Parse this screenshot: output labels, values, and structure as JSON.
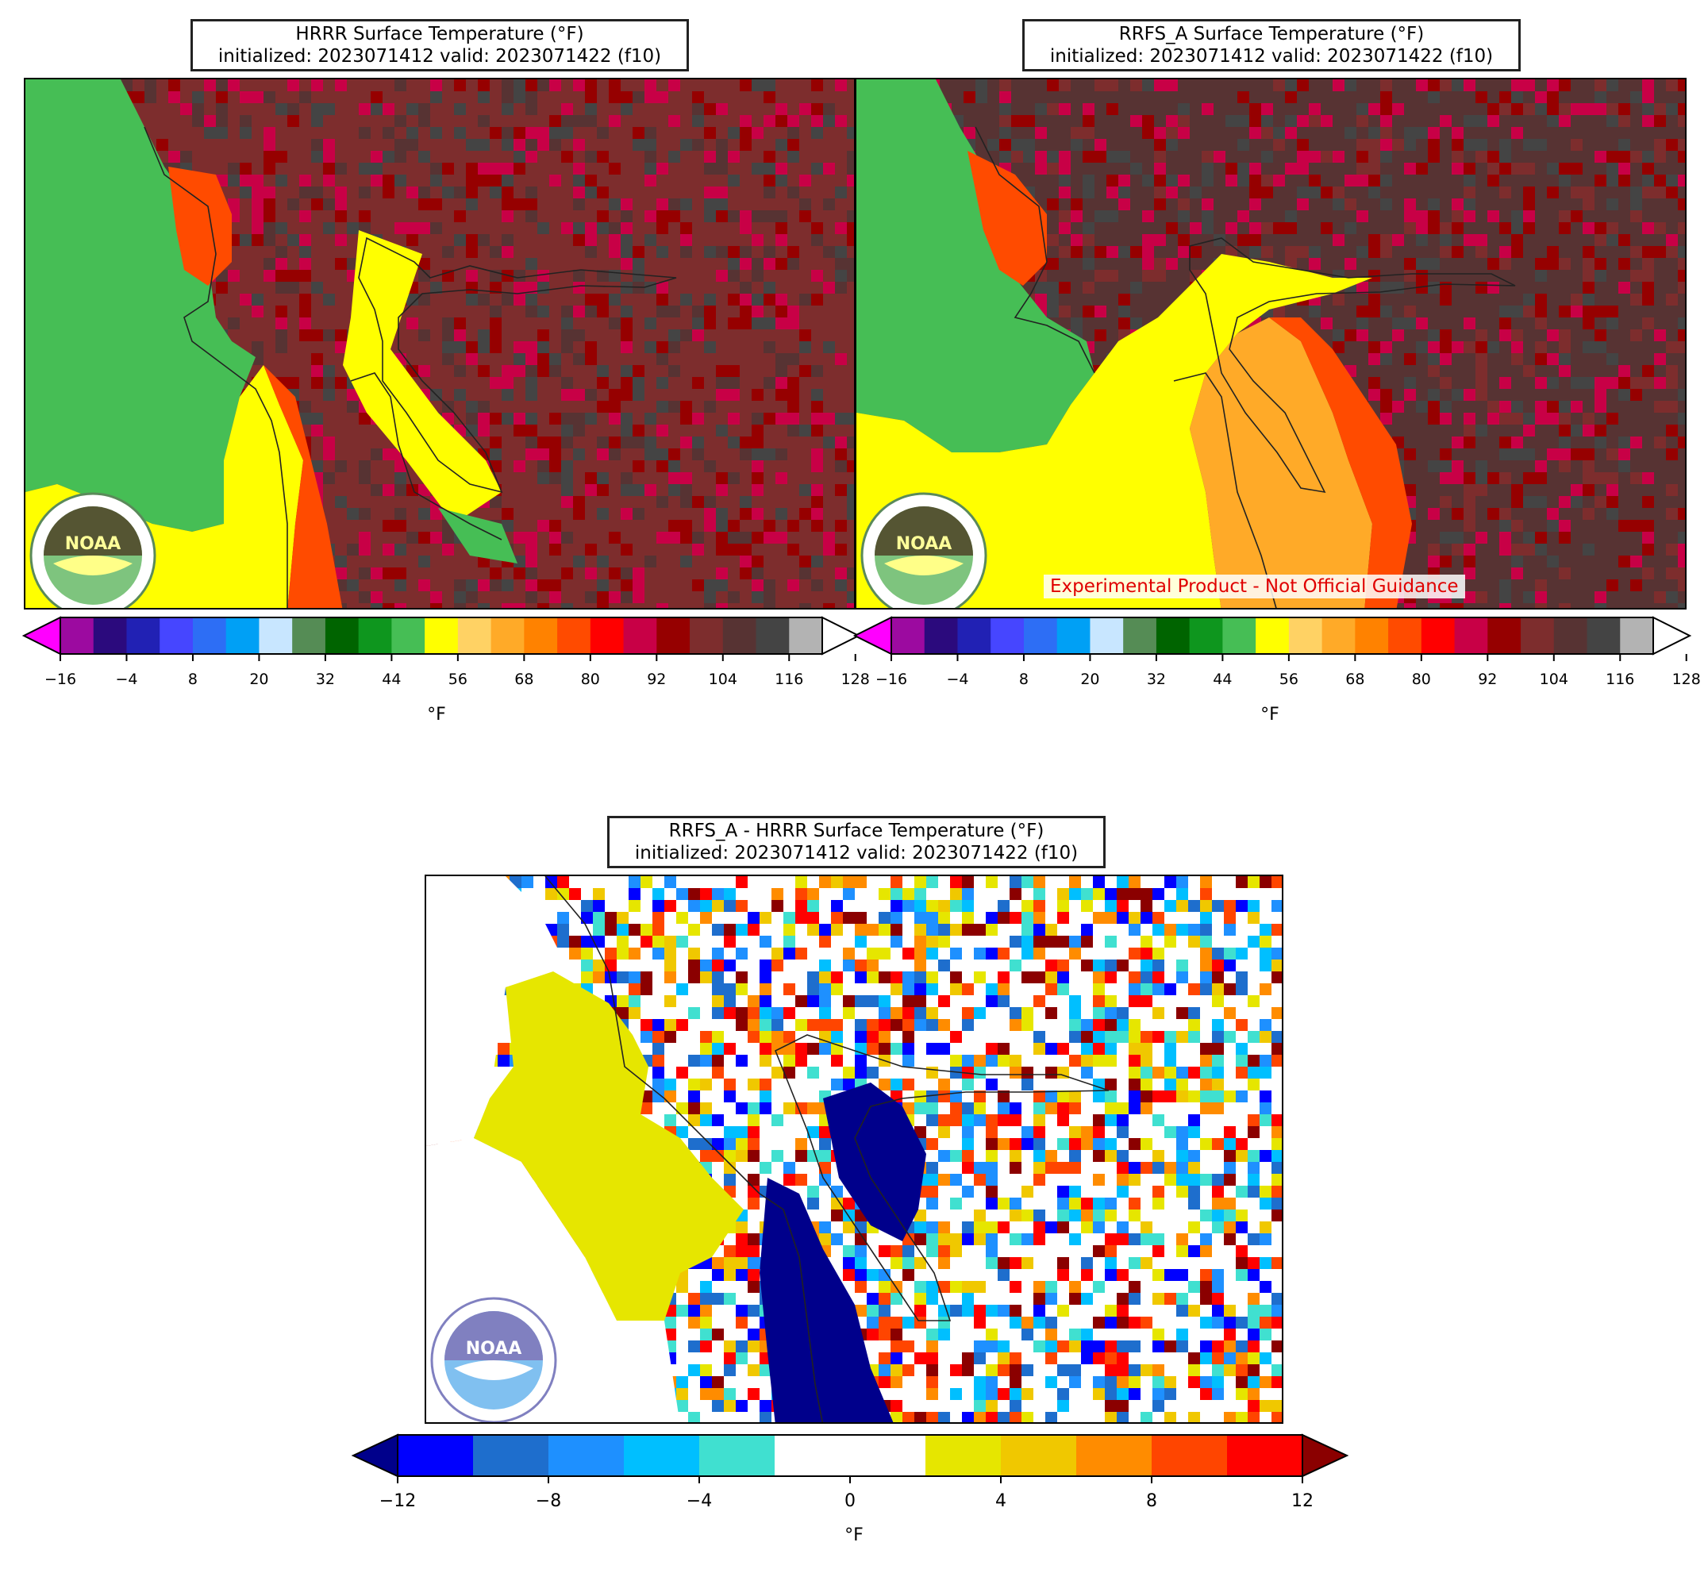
{
  "panels": [
    {
      "id": "hrrr",
      "title_line1": "HRRR Surface Temperature (°F)",
      "title_line2": "initialized: 2023071412 valid: 2023071422 (f10)"
    },
    {
      "id": "rrfs",
      "title_line1": "RRFS_A Surface Temperature (°F)",
      "title_line2": "initialized: 2023071412 valid: 2023071422 (f10)",
      "watermark": "Experimental Product - Not Official Guidance"
    },
    {
      "id": "diff",
      "title_line1": "RRFS_A - HRRR Surface Temperature (°F)",
      "title_line2": "initialized: 2023071412 valid: 2023071422 (f10)"
    }
  ],
  "logo": {
    "name": "noaa-logo",
    "text": "NOAA"
  },
  "temperature_colorbar": {
    "unit": "°F",
    "extend": "both",
    "ticks": [
      -16,
      -4,
      8,
      20,
      32,
      44,
      56,
      68,
      80,
      92,
      104,
      116,
      128
    ],
    "colors": [
      "#ff00ff",
      "#9c0aa0",
      "#2b0a7d",
      "#2121b4",
      "#4646ff",
      "#2d6ef5",
      "#00a0f5",
      "#c8e6ff",
      "#558c55",
      "#006400",
      "#0e961e",
      "#46be55",
      "#ffff00",
      "#ffd264",
      "#ffaa28",
      "#ff8200",
      "#ff4b00",
      "#ff0000",
      "#c80046",
      "#960000",
      "#7d2d2d",
      "#573333",
      "#444444",
      "#b3b3b3",
      "#ffffff"
    ]
  },
  "difference_colorbar": {
    "unit": "°F",
    "extend": "both",
    "ticks": [
      -12,
      -8,
      -4,
      0,
      4,
      8,
      12
    ],
    "colors": [
      "#00008b",
      "#0000ff",
      "#1e6ecd",
      "#1e90ff",
      "#00bfff",
      "#40e0d0",
      "#ffffff",
      "#ffffff",
      "#e6e600",
      "#f0c800",
      "#ff8c00",
      "#ff4500",
      "#ff0000",
      "#8b0000"
    ]
  },
  "colors": {
    "land_green": "#46be55",
    "outline": "#222222"
  }
}
